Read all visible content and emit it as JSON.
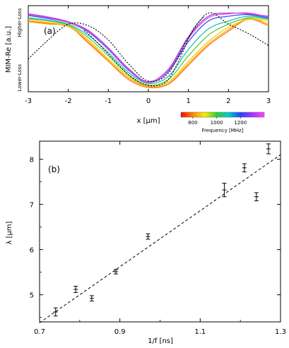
{
  "chart_data": [
    {
      "type": "line",
      "panel_label": "(a)",
      "xlabel": "x [µm]",
      "ylabel": "MIM-Re [a.u.]",
      "y_top_label": "Higher-Loss",
      "y_bottom_label": "Lower-Loss",
      "xlim": [
        -3,
        3
      ],
      "ylim": [
        0,
        1
      ],
      "xticks": [
        "-3",
        "-2",
        "-1",
        "0",
        "1",
        "2",
        "3"
      ],
      "colorbar": {
        "label": "Frequency [MHz]",
        "range": [
          700,
          1400
        ],
        "ticks": [
          "800",
          "1000",
          "1200"
        ],
        "colors": [
          "#ff0000",
          "#ff8800",
          "#ffee00",
          "#33cc33",
          "#00cccc",
          "#2244ff",
          "#aa33ff",
          "#ff44ff"
        ]
      },
      "series": [
        {
          "line_color": "#ff7a1a",
          "x": [
            -3.0,
            -2.5,
            -2.0,
            -1.5,
            -1.0,
            -0.5,
            0.0,
            0.5,
            1.0,
            1.5,
            2.0,
            2.5,
            3.0
          ],
          "y": [
            0.86,
            0.83,
            0.8,
            0.58,
            0.35,
            0.12,
            0.02,
            0.06,
            0.3,
            0.55,
            0.73,
            0.88,
            0.8
          ]
        },
        {
          "line_color": "#ffa020",
          "x": [
            -3.0,
            -2.5,
            -2.0,
            -1.5,
            -1.0,
            -0.5,
            0.0,
            0.5,
            1.0,
            1.5,
            2.0,
            2.5,
            3.0
          ],
          "y": [
            0.85,
            0.82,
            0.79,
            0.6,
            0.36,
            0.14,
            0.03,
            0.07,
            0.32,
            0.57,
            0.75,
            0.89,
            0.82
          ]
        },
        {
          "line_color": "#f0cf00",
          "x": [
            -3.0,
            -2.5,
            -2.0,
            -1.5,
            -1.0,
            -0.5,
            0.0,
            0.5,
            1.0,
            1.5,
            2.0,
            2.5,
            3.0
          ],
          "y": [
            0.88,
            0.84,
            0.8,
            0.62,
            0.38,
            0.16,
            0.04,
            0.09,
            0.35,
            0.6,
            0.78,
            0.88,
            0.86
          ]
        },
        {
          "line_color": "#55cc44",
          "x": [
            -3.0,
            -2.5,
            -2.0,
            -1.5,
            -1.0,
            -0.5,
            0.0,
            0.5,
            1.0,
            1.5,
            2.0,
            2.5,
            3.0
          ],
          "y": [
            0.89,
            0.86,
            0.81,
            0.65,
            0.42,
            0.18,
            0.05,
            0.12,
            0.42,
            0.68,
            0.82,
            0.9,
            0.88
          ]
        },
        {
          "line_color": "#22bbbb",
          "x": [
            -3.0,
            -2.5,
            -2.0,
            -1.5,
            -1.0,
            -0.5,
            0.0,
            0.5,
            1.0,
            1.5,
            2.0,
            2.5,
            3.0
          ],
          "y": [
            0.9,
            0.87,
            0.82,
            0.68,
            0.46,
            0.21,
            0.07,
            0.16,
            0.5,
            0.76,
            0.86,
            0.92,
            0.89
          ]
        },
        {
          "line_color": "#3355ee",
          "x": [
            -3.0,
            -2.5,
            -2.0,
            -1.5,
            -1.0,
            -0.5,
            0.0,
            0.5,
            1.0,
            1.5,
            2.0,
            2.5,
            3.0
          ],
          "y": [
            0.93,
            0.89,
            0.84,
            0.72,
            0.5,
            0.24,
            0.08,
            0.22,
            0.6,
            0.86,
            0.92,
            0.94,
            0.9
          ]
        },
        {
          "line_color": "#9944dd",
          "x": [
            -3.0,
            -2.5,
            -2.0,
            -1.5,
            -1.0,
            -0.5,
            0.0,
            0.5,
            1.0,
            1.5,
            2.0,
            2.5,
            3.0
          ],
          "y": [
            0.95,
            0.91,
            0.85,
            0.74,
            0.52,
            0.26,
            0.09,
            0.25,
            0.66,
            0.92,
            0.96,
            0.95,
            0.92
          ]
        },
        {
          "line_color": "#ee44ee",
          "x": [
            -3.0,
            -2.5,
            -2.0,
            -1.5,
            -1.0,
            -0.5,
            0.0,
            0.5,
            1.0,
            1.5,
            2.0,
            2.5,
            3.0
          ],
          "y": [
            0.94,
            0.9,
            0.84,
            0.73,
            0.51,
            0.25,
            0.08,
            0.23,
            0.64,
            0.9,
            0.95,
            0.96,
            0.91
          ]
        },
        {
          "line_color": "#000000",
          "dashed": true,
          "x": [
            -3.0,
            -2.5,
            -2.0,
            -1.5,
            -1.0,
            -0.5,
            0.0,
            0.5,
            1.0,
            1.5,
            2.0,
            2.5,
            3.0
          ],
          "y": [
            0.38,
            0.62,
            0.82,
            0.8,
            0.62,
            0.32,
            0.1,
            0.2,
            0.65,
            0.96,
            0.82,
            0.7,
            0.55
          ]
        },
        {
          "line_color": "#000000",
          "dashed": true,
          "x": [
            -1.6,
            -1.3,
            -1.0,
            -0.7,
            -0.4,
            -0.1,
            0.2,
            0.5,
            0.8,
            1.1,
            1.4
          ],
          "y": [
            0.74,
            0.6,
            0.44,
            0.28,
            0.14,
            0.06,
            0.04,
            0.12,
            0.4,
            0.74,
            0.92
          ]
        }
      ]
    },
    {
      "type": "scatter",
      "panel_label": "(b)",
      "xlabel": "1/f [ns]",
      "ylabel": "λ [µm]",
      "xlim": [
        0.7,
        1.3
      ],
      "ylim": [
        4.4,
        8.4
      ],
      "xticks": [
        "0.7",
        "0.9",
        "1.1",
        "1.3"
      ],
      "yticks": [
        "5",
        "6",
        "7",
        "8"
      ],
      "points": [
        {
          "x": 0.74,
          "y": 4.62,
          "err": 0.09
        },
        {
          "x": 0.79,
          "y": 5.12,
          "err": 0.07
        },
        {
          "x": 0.83,
          "y": 4.92,
          "err": 0.06
        },
        {
          "x": 0.89,
          "y": 5.51,
          "err": 0.05
        },
        {
          "x": 0.97,
          "y": 6.29,
          "err": 0.06
        },
        {
          "x": 1.16,
          "y": 7.32,
          "err": 0.15
        },
        {
          "x": 1.21,
          "y": 7.81,
          "err": 0.09
        },
        {
          "x": 1.24,
          "y": 7.17,
          "err": 0.09
        },
        {
          "x": 1.27,
          "y": 8.23,
          "err": 0.11
        }
      ],
      "fit_line": {
        "x": [
          0.7,
          1.3
        ],
        "y": [
          4.38,
          8.1
        ],
        "dashed": true
      }
    }
  ]
}
